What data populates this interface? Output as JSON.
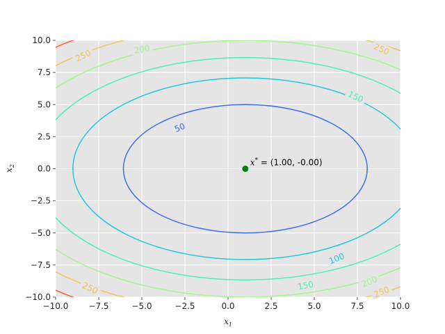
{
  "chart_data": {
    "type": "contour",
    "title": "",
    "xlabel": {
      "var": "x",
      "sub": "1"
    },
    "ylabel": {
      "var": "x",
      "sub": "2"
    },
    "xlim": [
      -10,
      10
    ],
    "ylim": [
      -10,
      10
    ],
    "xticks": [
      -10,
      -7.5,
      -5,
      -2.5,
      0,
      2.5,
      5,
      7.5,
      10
    ],
    "yticks": [
      -10,
      -7.5,
      -5,
      -2.5,
      0,
      2.5,
      5,
      7.5,
      10
    ],
    "xtick_labels": [
      "−10.0",
      "−7.5",
      "−5.0",
      "−2.5",
      "0.0",
      "2.5",
      "5.0",
      "7.5",
      "10.0"
    ],
    "ytick_labels": [
      "−10.0",
      "−7.5",
      "−5.0",
      "−2.5",
      "0.0",
      "2.5",
      "5.0",
      "7.5",
      "10.0"
    ],
    "grid": true,
    "background": "#e5e5e5",
    "function": {
      "a": 1,
      "x0": 1,
      "b": 2,
      "y0": 0
    },
    "levels": [
      {
        "value": 50,
        "color": "#3a6ef0"
      },
      {
        "value": 100,
        "color": "#1fc6e0"
      },
      {
        "value": 150,
        "color": "#4af0b0"
      },
      {
        "value": 200,
        "color": "#a0f78a"
      },
      {
        "value": 250,
        "color": "#f5c35a"
      },
      {
        "value": 300,
        "color": "#fa5e37"
      }
    ],
    "contour_labels": [
      {
        "text": "50",
        "level": 50,
        "x": -2.8,
        "y": 3.2,
        "angle": -22
      },
      {
        "text": "100",
        "level": 100,
        "x": 6.3,
        "y": -7.0,
        "angle": -22
      },
      {
        "text": "150",
        "level": 150,
        "x": 7.4,
        "y": 5.6,
        "angle": 25
      },
      {
        "text": "150",
        "level": 150,
        "x": 4.5,
        "y": -9.1,
        "angle": -10
      },
      {
        "text": "200",
        "level": 200,
        "x": -5.0,
        "y": 9.3,
        "angle": -10
      },
      {
        "text": "200",
        "level": 200,
        "x": 8.2,
        "y": -8.8,
        "angle": -22
      },
      {
        "text": "250",
        "level": 250,
        "x": -8.4,
        "y": 8.8,
        "angle": -25
      },
      {
        "text": "250",
        "level": 250,
        "x": 8.9,
        "y": 9.3,
        "angle": 25
      },
      {
        "text": "250",
        "level": 250,
        "x": -8.0,
        "y": -9.3,
        "angle": 25
      },
      {
        "text": "250",
        "level": 250,
        "x": 8.9,
        "y": -9.6,
        "angle": -22
      }
    ],
    "optimum": {
      "x": 1.0,
      "y": 0.0,
      "color": "#008000",
      "label_var": "x",
      "label_sup": "*",
      "label_text": " = (1.00, -0.00)"
    }
  }
}
